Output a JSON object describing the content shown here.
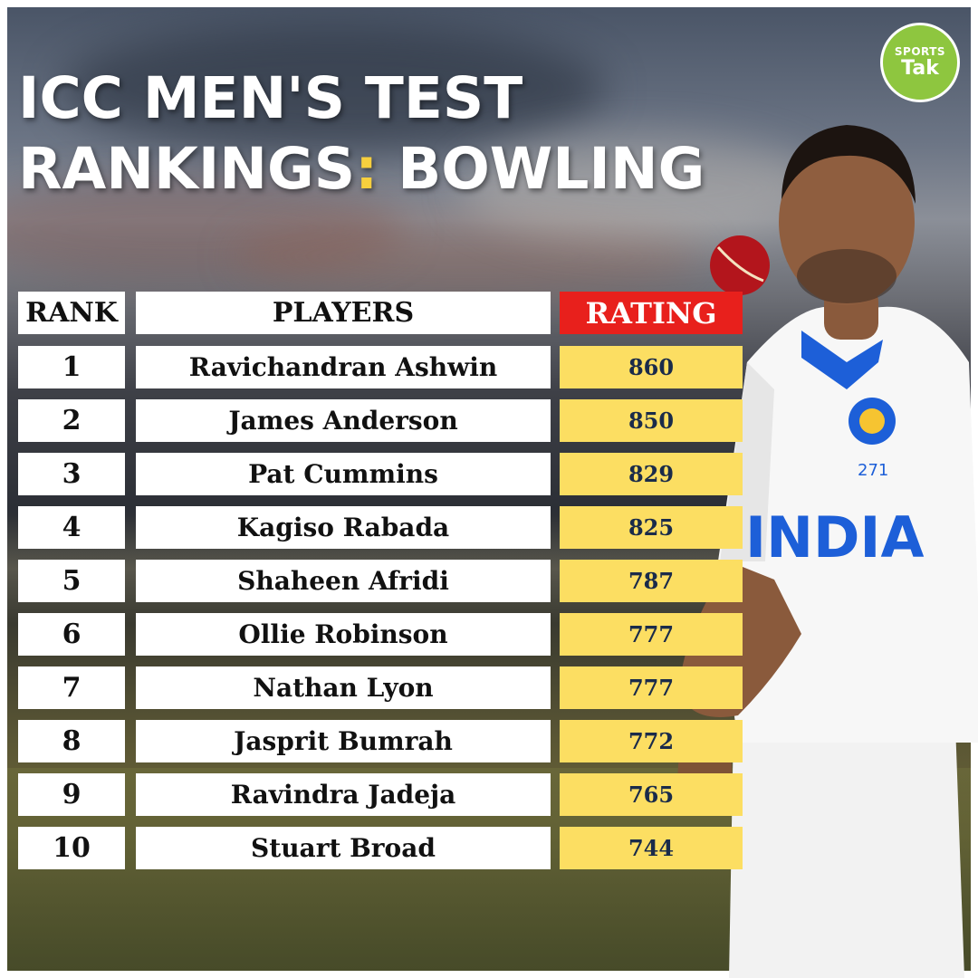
{
  "title": {
    "line1": "ICC MEN'S TEST",
    "line2_prefix": "RANKINGS",
    "colon": ":",
    "line2_suffix": " BOWLING"
  },
  "logo": {
    "line1": "SPORTS",
    "line2": "Tak",
    "color": "#8ec63f"
  },
  "table": {
    "headers": {
      "rank": "RANK",
      "players": "PLAYERS",
      "rating": "RATING"
    },
    "rows": [
      {
        "rank": "1",
        "player": "Ravichandran Ashwin",
        "rating": "860"
      },
      {
        "rank": "2",
        "player": "James Anderson",
        "rating": "850"
      },
      {
        "rank": "3",
        "player": "Pat Cummins",
        "rating": "829"
      },
      {
        "rank": "4",
        "player": "Kagiso Rabada",
        "rating": "825"
      },
      {
        "rank": "5",
        "player": "Shaheen Afridi",
        "rating": "787"
      },
      {
        "rank": "6",
        "player": "Ollie Robinson",
        "rating": "777"
      },
      {
        "rank": "7",
        "player": "Nathan Lyon",
        "rating": "777"
      },
      {
        "rank": "8",
        "player": "Jasprit Bumrah",
        "rating": "772"
      },
      {
        "rank": "9",
        "player": "Ravindra Jadeja",
        "rating": "765"
      },
      {
        "rank": "10",
        "player": "Stuart Broad",
        "rating": "744"
      }
    ]
  },
  "jersey": {
    "team": "INDIA",
    "number": "271"
  },
  "colors": {
    "accent_yellow": "#fcde62",
    "rating_header_red": "#e8201c",
    "rating_text_navy": "#1a2b4a"
  }
}
